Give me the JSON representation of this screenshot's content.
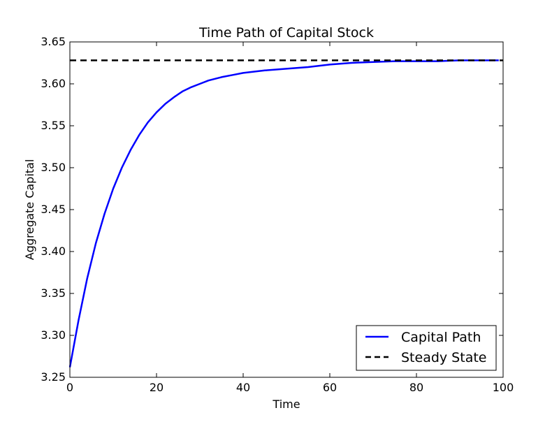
{
  "chart_data": {
    "type": "line",
    "title": "Time Path of Capital Stock",
    "xlabel": "Time",
    "ylabel": "Aggregate Capital",
    "xlim": [
      0,
      100
    ],
    "ylim": [
      3.25,
      3.65
    ],
    "x_ticks": [
      0,
      20,
      40,
      60,
      80,
      100
    ],
    "x_tick_labels": [
      "0",
      "20",
      "40",
      "60",
      "80",
      "100"
    ],
    "y_ticks": [
      3.25,
      3.3,
      3.35,
      3.4,
      3.45,
      3.5,
      3.55,
      3.6,
      3.65
    ],
    "y_tick_labels": [
      "3.25",
      "3.30",
      "3.35",
      "3.40",
      "3.45",
      "3.50",
      "3.55",
      "3.60",
      "3.65"
    ],
    "grid": false,
    "legend_position": "lower-right",
    "series": [
      {
        "name": "Capital Path",
        "color": "#0000ff",
        "style": "solid",
        "x": [
          0,
          2,
          4,
          6,
          8,
          10,
          12,
          14,
          16,
          18,
          20,
          22,
          24,
          26,
          28,
          30,
          32,
          35,
          38,
          40,
          45,
          50,
          55,
          60,
          65,
          70,
          75,
          80,
          85,
          90,
          95,
          99
        ],
        "y": [
          3.262,
          3.318,
          3.368,
          3.41,
          3.445,
          3.475,
          3.5,
          3.521,
          3.539,
          3.554,
          3.566,
          3.576,
          3.584,
          3.591,
          3.596,
          3.6,
          3.604,
          3.608,
          3.611,
          3.613,
          3.616,
          3.618,
          3.62,
          3.623,
          3.625,
          3.626,
          3.627,
          3.627,
          3.627,
          3.628,
          3.628,
          3.628
        ]
      },
      {
        "name": "Steady State",
        "color": "#000000",
        "style": "dashed",
        "x": [
          0,
          100
        ],
        "y": [
          3.628,
          3.628
        ]
      }
    ]
  }
}
